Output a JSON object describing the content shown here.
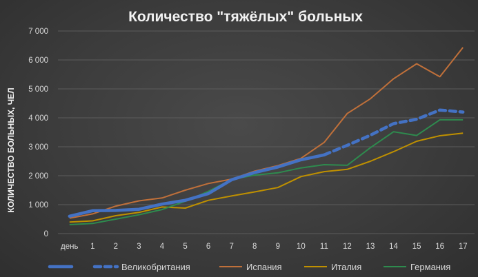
{
  "chart_data": {
    "type": "line",
    "title": "Количество \"тяжёлых\" больных",
    "xlabel": "",
    "ylabel": "КОЛИЧЕСТВО БОЛЬНЫХ, ЧЕЛ",
    "categories": [
      "день",
      "1",
      "2",
      "3",
      "4",
      "5",
      "6",
      "7",
      "8",
      "9",
      "10",
      "11",
      "12",
      "13",
      "14",
      "15",
      "16",
      "17"
    ],
    "ylim": [
      0,
      7000
    ],
    "yticks": [
      0,
      1000,
      2000,
      3000,
      4000,
      5000,
      6000,
      7000
    ],
    "ytick_labels": [
      "0",
      "1 000",
      "2 000",
      "3 000",
      "4 000",
      "5 000",
      "6 000",
      "7 000"
    ],
    "grid": "horizontal",
    "legend_position": "bottom",
    "series": [
      {
        "name": "",
        "color": "#4472c4",
        "style": "solid-thick",
        "values": [
          600,
          790,
          800,
          840,
          1020,
          1150,
          1380,
          1860,
          2110,
          2300,
          2550,
          2720,
          null,
          null,
          null,
          null,
          null,
          null
        ]
      },
      {
        "name": "Великобритания",
        "color": "#4472c4",
        "style": "dashed-thick",
        "values": [
          null,
          null,
          null,
          null,
          null,
          null,
          null,
          null,
          null,
          null,
          null,
          2720,
          3050,
          3400,
          3800,
          3950,
          4270,
          4200
        ]
      },
      {
        "name": "Испания",
        "color": "#c0703a",
        "style": "solid",
        "values": [
          530,
          680,
          950,
          1130,
          1230,
          1500,
          1730,
          1880,
          2160,
          2350,
          2600,
          3150,
          4150,
          4660,
          5350,
          5870,
          5420,
          6430
        ]
      },
      {
        "name": "Италия",
        "color": "#bf9000",
        "style": "solid",
        "values": [
          400,
          440,
          620,
          730,
          920,
          880,
          1150,
          1300,
          1440,
          1590,
          1970,
          2140,
          2220,
          2500,
          2830,
          3190,
          3380,
          3470
        ]
      },
      {
        "name": "Германия",
        "color": "#2e8b4e",
        "style": "solid",
        "values": [
          310,
          350,
          500,
          650,
          830,
          1120,
          1460,
          1870,
          2020,
          2100,
          2270,
          2380,
          2360,
          2970,
          3520,
          3390,
          3930,
          3930
        ]
      }
    ]
  }
}
